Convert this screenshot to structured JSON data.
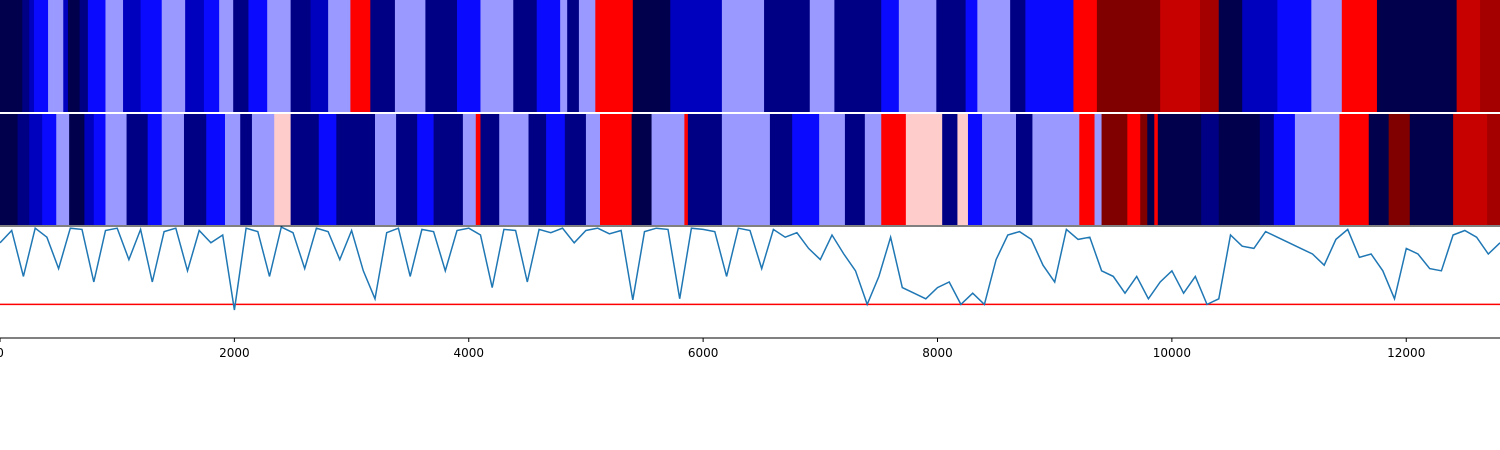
{
  "chart_data": [
    {
      "type": "heatmap",
      "panel": "top-strip",
      "colormap": "seismic",
      "x_range": [
        0,
        12800
      ],
      "segments": [
        {
          "x0": 0,
          "x1": 190,
          "level": 0.0
        },
        {
          "x0": 190,
          "x1": 250,
          "level": 0.08
        },
        {
          "x0": 250,
          "x1": 290,
          "level": 0.16
        },
        {
          "x0": 290,
          "x1": 410,
          "level": 0.26
        },
        {
          "x0": 410,
          "x1": 540,
          "level": 0.4
        },
        {
          "x0": 540,
          "x1": 580,
          "level": 0.16
        },
        {
          "x0": 580,
          "x1": 680,
          "level": 0.0
        },
        {
          "x0": 680,
          "x1": 750,
          "level": 0.08
        },
        {
          "x0": 750,
          "x1": 900,
          "level": 0.26
        },
        {
          "x0": 900,
          "x1": 1050,
          "level": 0.4
        },
        {
          "x0": 1050,
          "x1": 1200,
          "level": 0.16
        },
        {
          "x0": 1200,
          "x1": 1380,
          "level": 0.26
        },
        {
          "x0": 1380,
          "x1": 1580,
          "level": 0.4
        },
        {
          "x0": 1580,
          "x1": 1740,
          "level": 0.16
        },
        {
          "x0": 1740,
          "x1": 1870,
          "level": 0.26
        },
        {
          "x0": 1870,
          "x1": 1990,
          "level": 0.4
        },
        {
          "x0": 1990,
          "x1": 2120,
          "level": 0.08
        },
        {
          "x0": 2120,
          "x1": 2280,
          "level": 0.26
        },
        {
          "x0": 2280,
          "x1": 2480,
          "level": 0.4
        },
        {
          "x0": 2480,
          "x1": 2650,
          "level": 0.08
        },
        {
          "x0": 2650,
          "x1": 2800,
          "level": 0.16
        },
        {
          "x0": 2800,
          "x1": 2990,
          "level": 0.4
        },
        {
          "x0": 2990,
          "x1": 3160,
          "level": 0.75
        },
        {
          "x0": 3160,
          "x1": 3370,
          "level": 0.08
        },
        {
          "x0": 3370,
          "x1": 3630,
          "level": 0.4
        },
        {
          "x0": 3630,
          "x1": 3900,
          "level": 0.08
        },
        {
          "x0": 3900,
          "x1": 4100,
          "level": 0.26
        },
        {
          "x0": 4100,
          "x1": 4380,
          "level": 0.4
        },
        {
          "x0": 4380,
          "x1": 4580,
          "level": 0.08
        },
        {
          "x0": 4580,
          "x1": 4780,
          "level": 0.26
        },
        {
          "x0": 4780,
          "x1": 4840,
          "level": 0.4
        },
        {
          "x0": 4840,
          "x1": 4940,
          "level": 0.08
        },
        {
          "x0": 4940,
          "x1": 5080,
          "level": 0.4
        },
        {
          "x0": 5080,
          "x1": 5400,
          "level": 0.75
        },
        {
          "x0": 5400,
          "x1": 5720,
          "level": 0.0
        },
        {
          "x0": 5720,
          "x1": 6160,
          "level": 0.16
        },
        {
          "x0": 6160,
          "x1": 6520,
          "level": 0.4
        },
        {
          "x0": 6520,
          "x1": 6910,
          "level": 0.08
        },
        {
          "x0": 6910,
          "x1": 7120,
          "level": 0.4
        },
        {
          "x0": 7120,
          "x1": 7520,
          "level": 0.08
        },
        {
          "x0": 7520,
          "x1": 7670,
          "level": 0.26
        },
        {
          "x0": 7670,
          "x1": 7990,
          "level": 0.4
        },
        {
          "x0": 7990,
          "x1": 8240,
          "level": 0.08
        },
        {
          "x0": 8240,
          "x1": 8340,
          "level": 0.26
        },
        {
          "x0": 8340,
          "x1": 8620,
          "level": 0.4
        },
        {
          "x0": 8620,
          "x1": 8750,
          "level": 0.08
        },
        {
          "x0": 8750,
          "x1": 9160,
          "level": 0.26
        },
        {
          "x0": 9160,
          "x1": 9360,
          "level": 0.75
        },
        {
          "x0": 9360,
          "x1": 9900,
          "level": 1.0
        },
        {
          "x0": 9900,
          "x1": 10240,
          "level": 0.86
        },
        {
          "x0": 10240,
          "x1": 10400,
          "level": 0.93
        },
        {
          "x0": 10400,
          "x1": 10600,
          "level": 0.0
        },
        {
          "x0": 10600,
          "x1": 10900,
          "level": 0.16
        },
        {
          "x0": 10900,
          "x1": 11190,
          "level": 0.26
        },
        {
          "x0": 11190,
          "x1": 11450,
          "level": 0.4
        },
        {
          "x0": 11450,
          "x1": 11750,
          "level": 0.75
        },
        {
          "x0": 11750,
          "x1": 12430,
          "level": 0.0
        },
        {
          "x0": 12430,
          "x1": 12630,
          "level": 0.86
        },
        {
          "x0": 12630,
          "x1": 12800,
          "level": 0.93
        }
      ]
    },
    {
      "type": "heatmap",
      "panel": "middle-strip",
      "colormap": "seismic",
      "x_range": [
        0,
        12800
      ],
      "segments": [
        {
          "x0": 0,
          "x1": 150,
          "level": 0.0
        },
        {
          "x0": 150,
          "x1": 250,
          "level": 0.08
        },
        {
          "x0": 250,
          "x1": 360,
          "level": 0.16
        },
        {
          "x0": 360,
          "x1": 480,
          "level": 0.26
        },
        {
          "x0": 480,
          "x1": 590,
          "level": 0.4
        },
        {
          "x0": 590,
          "x1": 720,
          "level": 0.0
        },
        {
          "x0": 720,
          "x1": 800,
          "level": 0.16
        },
        {
          "x0": 800,
          "x1": 900,
          "level": 0.26
        },
        {
          "x0": 900,
          "x1": 1080,
          "level": 0.4
        },
        {
          "x0": 1080,
          "x1": 1260,
          "level": 0.08
        },
        {
          "x0": 1260,
          "x1": 1380,
          "level": 0.26
        },
        {
          "x0": 1380,
          "x1": 1570,
          "level": 0.4
        },
        {
          "x0": 1570,
          "x1": 1760,
          "level": 0.08
        },
        {
          "x0": 1760,
          "x1": 1920,
          "level": 0.26
        },
        {
          "x0": 1920,
          "x1": 2050,
          "level": 0.4
        },
        {
          "x0": 2050,
          "x1": 2150,
          "level": 0.08
        },
        {
          "x0": 2150,
          "x1": 2340,
          "level": 0.4
        },
        {
          "x0": 2340,
          "x1": 2480,
          "level": 0.55
        },
        {
          "x0": 2480,
          "x1": 2720,
          "level": 0.08
        },
        {
          "x0": 2720,
          "x1": 2870,
          "level": 0.26
        },
        {
          "x0": 2870,
          "x1": 3200,
          "level": 0.08
        },
        {
          "x0": 3200,
          "x1": 3380,
          "level": 0.4
        },
        {
          "x0": 3380,
          "x1": 3560,
          "level": 0.08
        },
        {
          "x0": 3560,
          "x1": 3700,
          "level": 0.26
        },
        {
          "x0": 3700,
          "x1": 3950,
          "level": 0.08
        },
        {
          "x0": 3950,
          "x1": 4060,
          "level": 0.4
        },
        {
          "x0": 4060,
          "x1": 4100,
          "level": 0.75
        },
        {
          "x0": 4100,
          "x1": 4260,
          "level": 0.08
        },
        {
          "x0": 4260,
          "x1": 4510,
          "level": 0.4
        },
        {
          "x0": 4510,
          "x1": 4660,
          "level": 0.08
        },
        {
          "x0": 4660,
          "x1": 4820,
          "level": 0.26
        },
        {
          "x0": 4820,
          "x1": 5000,
          "level": 0.08
        },
        {
          "x0": 5000,
          "x1": 5120,
          "level": 0.4
        },
        {
          "x0": 5120,
          "x1": 5390,
          "level": 0.75
        },
        {
          "x0": 5390,
          "x1": 5560,
          "level": 0.0
        },
        {
          "x0": 5560,
          "x1": 5840,
          "level": 0.4
        },
        {
          "x0": 5840,
          "x1": 5870,
          "level": 0.75
        },
        {
          "x0": 5870,
          "x1": 6160,
          "level": 0.08
        },
        {
          "x0": 6160,
          "x1": 6570,
          "level": 0.4
        },
        {
          "x0": 6570,
          "x1": 6760,
          "level": 0.08
        },
        {
          "x0": 6760,
          "x1": 6990,
          "level": 0.26
        },
        {
          "x0": 6990,
          "x1": 7210,
          "level": 0.4
        },
        {
          "x0": 7210,
          "x1": 7380,
          "level": 0.08
        },
        {
          "x0": 7380,
          "x1": 7520,
          "level": 0.4
        },
        {
          "x0": 7520,
          "x1": 7730,
          "level": 0.75
        },
        {
          "x0": 7730,
          "x1": 8040,
          "level": 0.55
        },
        {
          "x0": 8040,
          "x1": 8170,
          "level": 0.08
        },
        {
          "x0": 8170,
          "x1": 8260,
          "level": 0.55
        },
        {
          "x0": 8260,
          "x1": 8380,
          "level": 0.26
        },
        {
          "x0": 8380,
          "x1": 8670,
          "level": 0.4
        },
        {
          "x0": 8670,
          "x1": 8810,
          "level": 0.08
        },
        {
          "x0": 8810,
          "x1": 9210,
          "level": 0.4
        },
        {
          "x0": 9210,
          "x1": 9340,
          "level": 0.75
        },
        {
          "x0": 9340,
          "x1": 9400,
          "level": 0.4
        },
        {
          "x0": 9400,
          "x1": 9620,
          "level": 1.0
        },
        {
          "x0": 9620,
          "x1": 9730,
          "level": 0.75
        },
        {
          "x0": 9730,
          "x1": 9790,
          "level": 1.0
        },
        {
          "x0": 9790,
          "x1": 9850,
          "level": 0.0
        },
        {
          "x0": 9850,
          "x1": 9880,
          "level": 0.75
        },
        {
          "x0": 9880,
          "x1": 10250,
          "level": 0.0
        },
        {
          "x0": 10250,
          "x1": 10400,
          "level": 0.08
        },
        {
          "x0": 10400,
          "x1": 10750,
          "level": 0.0
        },
        {
          "x0": 10750,
          "x1": 10870,
          "level": 0.08
        },
        {
          "x0": 10870,
          "x1": 11050,
          "level": 0.26
        },
        {
          "x0": 11050,
          "x1": 11430,
          "level": 0.4
        },
        {
          "x0": 11430,
          "x1": 11680,
          "level": 0.75
        },
        {
          "x0": 11680,
          "x1": 11850,
          "level": 0.0
        },
        {
          "x0": 11850,
          "x1": 12030,
          "level": 1.0
        },
        {
          "x0": 12030,
          "x1": 12400,
          "level": 0.0
        },
        {
          "x0": 12400,
          "x1": 12690,
          "level": 0.86
        },
        {
          "x0": 12690,
          "x1": 12800,
          "level": 0.93
        }
      ]
    },
    {
      "type": "line",
      "panel": "bottom-plot",
      "x_range": [
        0,
        12800
      ],
      "y_range": [
        0,
        1
      ],
      "threshold": 0.3,
      "threshold_color": "#ff0000",
      "line_color": "#1f77b4",
      "x": [
        0,
        100,
        200,
        300,
        400,
        500,
        600,
        700,
        800,
        900,
        1000,
        1100,
        1200,
        1300,
        1400,
        1500,
        1600,
        1700,
        1800,
        1900,
        2000,
        2100,
        2200,
        2300,
        2400,
        2500,
        2600,
        2700,
        2800,
        2900,
        3000,
        3100,
        3200,
        3300,
        3400,
        3500,
        3600,
        3700,
        3800,
        3900,
        4000,
        4100,
        4200,
        4300,
        4400,
        4500,
        4600,
        4700,
        4800,
        4900,
        5000,
        5100,
        5200,
        5300,
        5400,
        5500,
        5600,
        5700,
        5800,
        5900,
        6000,
        6100,
        6200,
        6300,
        6400,
        6500,
        6600,
        6700,
        6800,
        6900,
        7000,
        7100,
        7200,
        7300,
        7400,
        7500,
        7600,
        7700,
        7800,
        7900,
        8000,
        8100,
        8200,
        8300,
        8400,
        8500,
        8600,
        8700,
        8800,
        8900,
        9000,
        9100,
        9200,
        9300,
        9400,
        9500,
        9600,
        9700,
        9800,
        9900,
        10000,
        10100,
        10200,
        10300,
        10400,
        10500,
        10600,
        10700,
        10800,
        10900,
        11000,
        11100,
        11200,
        11300,
        11400,
        11500,
        11600,
        11700,
        11800,
        11900,
        12000,
        12100,
        12200,
        12300,
        12400,
        12500,
        12600,
        12700,
        12800
      ],
      "y": [
        0.85,
        0.96,
        0.55,
        0.98,
        0.9,
        0.62,
        0.98,
        0.97,
        0.5,
        0.96,
        0.98,
        0.7,
        0.97,
        0.5,
        0.95,
        0.98,
        0.6,
        0.96,
        0.85,
        0.92,
        0.25,
        0.98,
        0.95,
        0.55,
        0.99,
        0.94,
        0.62,
        0.98,
        0.95,
        0.7,
        0.96,
        0.6,
        0.35,
        0.94,
        0.98,
        0.55,
        0.97,
        0.95,
        0.6,
        0.96,
        0.98,
        0.92,
        0.45,
        0.97,
        0.96,
        0.5,
        0.97,
        0.94,
        0.98,
        0.85,
        0.96,
        0.98,
        0.93,
        0.96,
        0.34,
        0.95,
        0.98,
        0.97,
        0.35,
        0.98,
        0.97,
        0.95,
        0.55,
        0.98,
        0.96,
        0.62,
        0.97,
        0.9,
        0.94,
        0.8,
        0.7,
        0.92,
        0.75,
        0.6,
        0.3,
        0.55,
        0.9,
        0.45,
        0.4,
        0.35,
        0.45,
        0.5,
        0.3,
        0.4,
        0.3,
        0.7,
        0.92,
        0.95,
        0.88,
        0.65,
        0.5,
        0.97,
        0.88,
        0.9,
        0.6,
        0.55,
        0.4,
        0.55,
        0.35,
        0.5,
        0.6,
        0.4,
        0.55,
        0.3,
        0.35,
        0.92,
        0.82,
        0.8,
        0.95,
        0.9,
        0.85,
        0.8,
        0.75,
        0.65,
        0.88,
        0.97,
        0.72,
        0.75,
        0.6,
        0.35,
        0.8,
        0.75,
        0.62,
        0.6,
        0.92,
        0.96,
        0.9,
        0.75,
        0.85
      ],
      "x_ticks": [
        "0",
        "2000",
        "4000",
        "6000",
        "8000",
        "10000",
        "12000"
      ],
      "x_tick_values": [
        0,
        2000,
        4000,
        6000,
        8000,
        10000,
        12000
      ]
    }
  ]
}
